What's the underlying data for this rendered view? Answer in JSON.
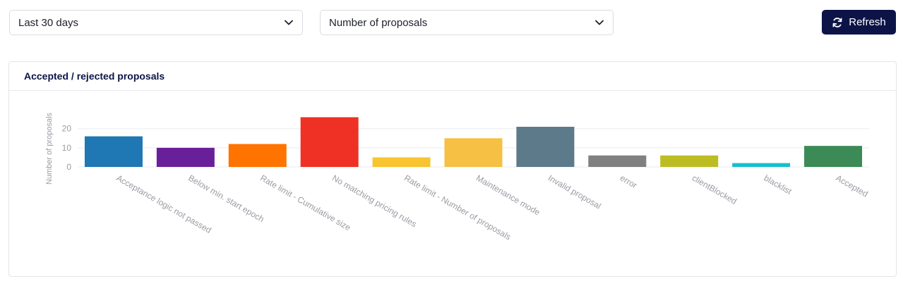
{
  "filters": {
    "period": "Last 30 days",
    "metric": "Number of proposals"
  },
  "toolbar": {
    "refresh_label": "Refresh",
    "refresh_icon": "refresh-icon"
  },
  "card": {
    "title": "Accepted / rejected proposals"
  },
  "chart_data": {
    "type": "bar",
    "title": "Accepted / rejected proposals",
    "xlabel": "",
    "ylabel": "Number of proposals",
    "ylim": [
      0,
      28
    ],
    "yticks": [
      0,
      10,
      20
    ],
    "grid": true,
    "categories": [
      "Acceptance logic not passed",
      "Below min. start epoch",
      "Rate limit - Cumulative size",
      "No matching pricing rules",
      "Rate limit - Number of proposals",
      "Maintenance mode",
      "Invalid proposal",
      "error",
      "clientBlocked",
      "blacklist",
      "Accepted"
    ],
    "values": [
      16,
      10,
      12,
      26,
      5,
      15,
      21,
      6,
      6,
      2,
      11
    ],
    "colors": [
      "#1f77b4",
      "#6a1f9a",
      "#ff7300",
      "#ee3124",
      "#f8c531",
      "#f5c043",
      "#5d7a8a",
      "#808080",
      "#bcbd22",
      "#17becf",
      "#3c8a56"
    ]
  }
}
